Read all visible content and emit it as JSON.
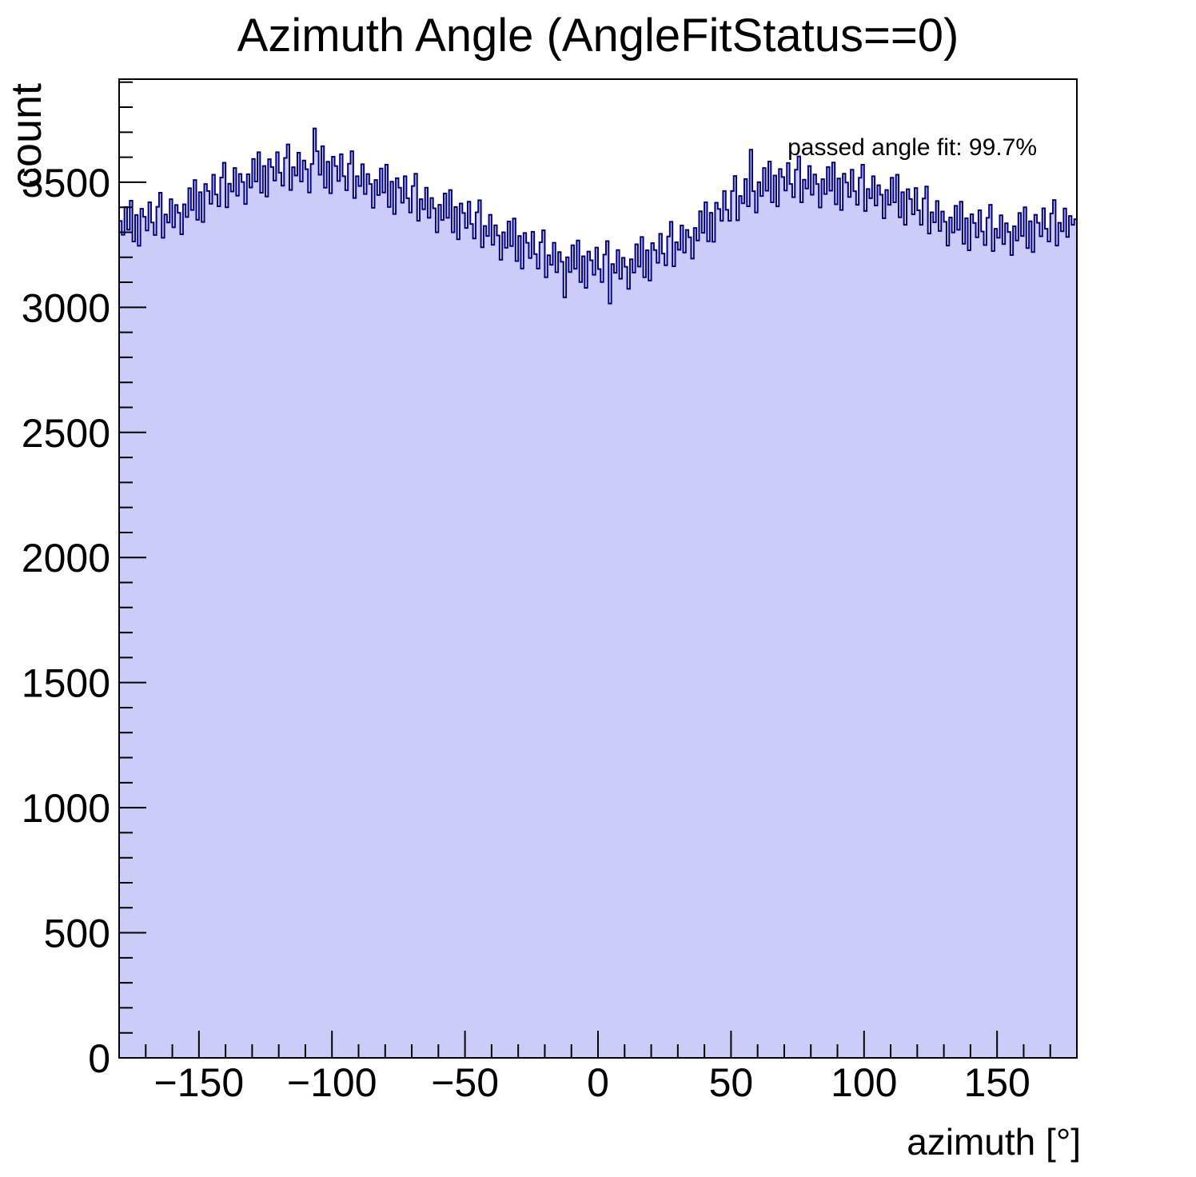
{
  "title": "Azimuth Angle (AngleFitStatus==0)",
  "chart_data": {
    "type": "bar",
    "title": "Azimuth Angle (AngleFitStatus==0)",
    "xlabel": "azimuth [°]",
    "ylabel": "count",
    "annotation": "passed angle fit: 99.7%",
    "annotation_position": "top-right",
    "xlim": [
      -180,
      180
    ],
    "ylim": [
      0,
      3912
    ],
    "x_major_ticks": [
      -150,
      -100,
      -50,
      0,
      50,
      100,
      150
    ],
    "x_minor_step": 10,
    "y_major_ticks": [
      0,
      500,
      1000,
      1500,
      2000,
      2500,
      3000,
      3500
    ],
    "y_minor_step": 100,
    "grid": false,
    "bin_start": -180,
    "bin_width": 1,
    "fill_color": "#ccccf9",
    "line_color": "#00008b",
    "frame_color": "#000000",
    "values": [
      3345,
      3290,
      3401,
      3310,
      3426,
      3263,
      3369,
      3246,
      3394,
      3362,
      3307,
      3420,
      3339,
      3289,
      3402,
      3458,
      3278,
      3371,
      3339,
      3432,
      3320,
      3409,
      3378,
      3292,
      3412,
      3361,
      3476,
      3389,
      3509,
      3350,
      3460,
      3341,
      3493,
      3465,
      3414,
      3530,
      3451,
      3404,
      3519,
      3578,
      3400,
      3494,
      3463,
      3557,
      3446,
      3533,
      3501,
      3413,
      3532,
      3479,
      3593,
      3503,
      3620,
      3458,
      3565,
      3443,
      3592,
      3561,
      3507,
      3620,
      3538,
      3486,
      3597,
      3651,
      3469,
      3560,
      3527,
      3618,
      3503,
      3587,
      3552,
      3459,
      3573,
      3715,
      3624,
      3530,
      3644,
      3478,
      3582,
      3456,
      3602,
      3565,
      3505,
      3612,
      3524,
      3468,
      3574,
      3624,
      3437,
      3524,
      3485,
      3572,
      3453,
      3533,
      3493,
      3398,
      3509,
      3449,
      3555,
      3459,
      3570,
      3401,
      3502,
      3373,
      3516,
      3478,
      3418,
      3524,
      3436,
      3379,
      3485,
      3534,
      3346,
      3432,
      3392,
      3478,
      3358,
      3437,
      3396,
      3300,
      3410,
      3349,
      3455,
      3358,
      3469,
      3300,
      3401,
      3272,
      3415,
      3377,
      3317,
      3422,
      3333,
      3275,
      3380,
      3428,
      3240,
      3325,
      3285,
      3370,
      3250,
      3328,
      3287,
      3190,
      3300,
      3238,
      3343,
      3245,
      3355,
      3185,
      3285,
      3155,
      3297,
      3258,
      3197,
      3302,
      3213,
      3155,
      3260,
      3308,
      3120,
      3208,
      3170,
      3258,
      3140,
      3221,
      3182,
      3040,
      3200,
      3141,
      3248,
      3154,
      3267,
      3101,
      3204,
      3078,
      3223,
      3188,
      3130,
      3239,
      3153,
      3101,
      3211,
      3265,
      3015,
      3173,
      3138,
      3229,
      3114,
      3198,
      3162,
      3074,
      3192,
      3139,
      3252,
      3163,
      3281,
      3120,
      3228,
      3107,
      3257,
      3229,
      3178,
      3294,
      3215,
      3168,
      3283,
      3342,
      3164,
      3260,
      3230,
      3327,
      3219,
      3309,
      3280,
      3195,
      3317,
      3267,
      3384,
      3298,
      3420,
      3264,
      3378,
      3262,
      3418,
      3393,
      3346,
      3465,
      3390,
      3346,
      3465,
      3525,
      3348,
      3445,
      3416,
      3513,
      3404,
      3630,
      3464,
      3379,
      3500,
      3445,
      3557,
      3466,
      3583,
      3420,
      3527,
      3404,
      3553,
      3521,
      3467,
      3577,
      3493,
      3440,
      3550,
      3603,
      3420,
      3510,
      3475,
      3565,
      3450,
      3531,
      3493,
      3399,
      3512,
      3453,
      3561,
      3466,
      3579,
      3412,
      3515,
      3389,
      3534,
      3499,
      3441,
      3550,
      3464,
      3410,
      3518,
      3570,
      3385,
      3473,
      3436,
      3524,
      3407,
      3488,
      3450,
      3356,
      3469,
      3410,
      3518,
      3420,
      3530,
      3360,
      3460,
      3330,
      3472,
      3433,
      3372,
      3477,
      3388,
      3330,
      3435,
      3483,
      3295,
      3380,
      3340,
      3425,
      3305,
      3383,
      3342,
      3247,
      3359,
      3299,
      3406,
      3310,
      3422,
      3254,
      3356,
      3228,
      3372,
      3337,
      3280,
      3388,
      3303,
      3249,
      3358,
      3410,
      3225,
      3314,
      3278,
      3368,
      3253,
      3336,
      3301,
      3209,
      3324,
      3267,
      3377,
      3285,
      3400,
      3237,
      3344,
      3221,
      3370,
      3338,
      3284,
      3396,
      3314,
      3263,
      3375,
      3429,
      3247,
      3338,
      3304,
      3395,
      3281,
      3365,
      3330,
      3352
    ]
  }
}
